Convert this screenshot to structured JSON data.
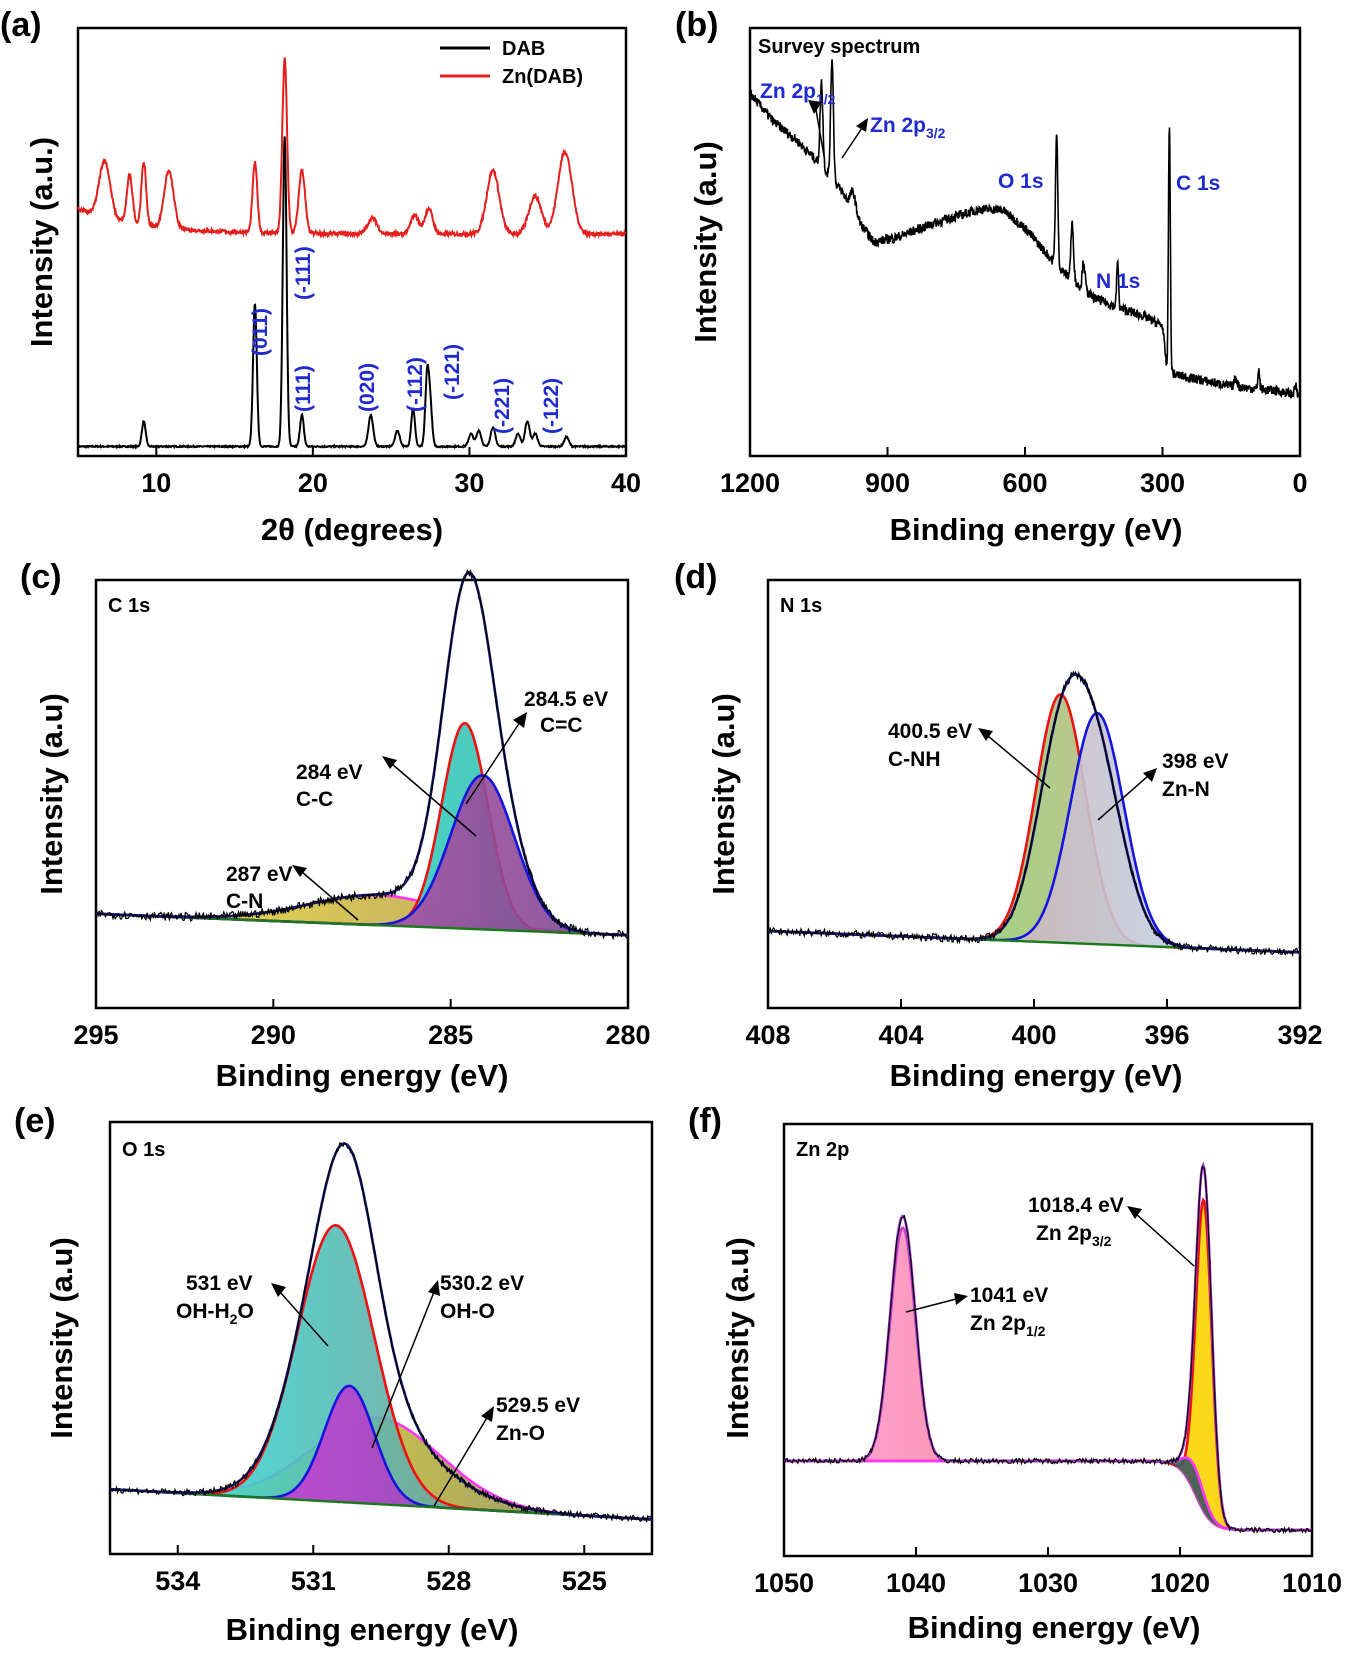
{
  "chart_data": [
    {
      "id": "a",
      "type": "line",
      "panel_label": "(a)",
      "xlabel": "2θ (degrees)",
      "ylabel": "Intensity (a.u.)",
      "xlim": [
        5,
        40
      ],
      "xticks": [
        "10",
        "20",
        "30",
        "40"
      ],
      "legend": {
        "placement": "top-right",
        "entries": [
          {
            "name": "DAB",
            "color": "#000000"
          },
          {
            "name": "Zn(DAB)",
            "color": "#e51e1e"
          }
        ]
      },
      "series": [
        {
          "name": "DAB",
          "color": "#000000",
          "baseline": 0.03,
          "peaks": [
            [
              9.2,
              0.08,
              0.12
            ],
            [
              16.3,
              0.45,
              0.12
            ],
            [
              18.2,
              0.98,
              0.12
            ],
            [
              19.3,
              0.1,
              0.12
            ],
            [
              23.7,
              0.1,
              0.15
            ],
            [
              25.4,
              0.05,
              0.15
            ],
            [
              26.4,
              0.12,
              0.12
            ],
            [
              27.3,
              0.22,
              0.12
            ],
            [
              27.5,
              0.12,
              0.12
            ],
            [
              30.1,
              0.04,
              0.15
            ],
            [
              30.6,
              0.05,
              0.15
            ],
            [
              31.5,
              0.06,
              0.15
            ],
            [
              33.1,
              0.04,
              0.15
            ],
            [
              33.7,
              0.08,
              0.15
            ],
            [
              34.2,
              0.04,
              0.15
            ],
            [
              36.2,
              0.03,
              0.15
            ]
          ]
        },
        {
          "name": "Zn(DAB)",
          "color": "#e51e1e",
          "baseline": 0.25,
          "peaks": [
            [
              6.7,
              0.18,
              0.35
            ],
            [
              8.3,
              0.15,
              0.18
            ],
            [
              9.2,
              0.2,
              0.15
            ],
            [
              10.8,
              0.18,
              0.3
            ],
            [
              16.3,
              0.22,
              0.15
            ],
            [
              18.2,
              0.55,
              0.15
            ],
            [
              19.3,
              0.2,
              0.2
            ],
            [
              23.8,
              0.05,
              0.3
            ],
            [
              26.5,
              0.06,
              0.25
            ],
            [
              27.4,
              0.08,
              0.25
            ],
            [
              31.5,
              0.2,
              0.4
            ],
            [
              34.2,
              0.12,
              0.4
            ],
            [
              36.1,
              0.26,
              0.45
            ]
          ]
        }
      ],
      "annotations": [
        {
          "text": "(011)",
          "x": 16.3
        },
        {
          "text": "(-111)",
          "x": 18.2
        },
        {
          "text": "(111)",
          "x": 19.3
        },
        {
          "text": "(020)",
          "x": 23.7
        },
        {
          "text": "(-112)",
          "x": 26.4
        },
        {
          "text": "(-121)",
          "x": 27.4
        },
        {
          "text": "(-221)",
          "x": 31.5
        },
        {
          "text": "(-122)",
          "x": 33.7
        }
      ]
    },
    {
      "id": "b",
      "type": "line",
      "panel_label": "(b)",
      "inset_title": "Survey spectrum",
      "xlabel": "Binding energy (eV)",
      "ylabel": "Intensity (a.u)",
      "xlim": [
        1200,
        0
      ],
      "xticks": [
        "1200",
        "900",
        "600",
        "300",
        "0"
      ],
      "series": [
        {
          "name": "survey",
          "color": "#000000",
          "background": [
            [
              1200,
              0.78
            ],
            [
              1150,
              0.72
            ],
            [
              1100,
              0.68
            ],
            [
              1050,
              0.63
            ],
            [
              1000,
              0.57
            ],
            [
              960,
              0.5
            ],
            [
              930,
              0.46
            ],
            [
              880,
              0.47
            ],
            [
              800,
              0.5
            ],
            [
              700,
              0.53
            ],
            [
              650,
              0.53
            ],
            [
              600,
              0.49
            ],
            [
              540,
              0.42
            ],
            [
              500,
              0.38
            ],
            [
              450,
              0.34
            ],
            [
              400,
              0.32
            ],
            [
              340,
              0.3
            ],
            [
              300,
              0.28
            ],
            [
              290,
              0.18
            ],
            [
              250,
              0.17
            ],
            [
              150,
              0.15
            ],
            [
              50,
              0.14
            ],
            [
              0,
              0.13
            ]
          ],
          "peaks": [
            [
              1044,
              0.18,
              3
            ],
            [
              1021,
              0.26,
              3
            ],
            [
              975,
              0.04,
              6
            ],
            [
              531,
              0.28,
              2.5
            ],
            [
              497,
              0.12,
              3
            ],
            [
              472,
              0.06,
              3
            ],
            [
              398,
              0.1,
              2
            ],
            [
              285,
              0.54,
              2
            ],
            [
              140,
              0.02,
              3
            ],
            [
              90,
              0.04,
              2
            ],
            [
              10,
              0.02,
              2
            ]
          ]
        }
      ],
      "annotations": [
        {
          "text": "Zn 2p",
          "sub": "1/2",
          "x": 1044
        },
        {
          "text": "Zn 2p",
          "sub": "3/2",
          "x": 1021
        },
        {
          "text": "O 1s",
          "x": 531
        },
        {
          "text": "N 1s",
          "x": 398
        },
        {
          "text": "C 1s",
          "x": 285
        }
      ]
    },
    {
      "id": "c",
      "type": "area",
      "panel_label": "(c)",
      "inset_title": "C 1s",
      "xlabel": "Binding energy (eV)",
      "ylabel": "Intensity (a.u)",
      "xlim": [
        295,
        280
      ],
      "xticks": [
        "295",
        "290",
        "285",
        "280"
      ],
      "background": {
        "x": [
          295,
          280
        ],
        "y": [
          0.22,
          0.17
        ],
        "color": "#1a7a1a"
      },
      "components": [
        {
          "center": 287,
          "amp": 0.07,
          "sigma": 2.0,
          "line": "#ff33ff",
          "fill": [
            "#f0e030",
            "#a89060"
          ]
        },
        {
          "center": 284.6,
          "amp": 0.48,
          "sigma": 0.65,
          "line": "#ee1111",
          "fill": [
            "#22e8e8",
            "#40b8a0"
          ]
        },
        {
          "center": 284.1,
          "amp": 0.36,
          "sigma": 0.9,
          "line": "#1515dd",
          "fill": [
            "#ff55cc",
            "#704888"
          ]
        }
      ],
      "envelope_color": "#14147a",
      "annotations": [
        {
          "lines": [
            "284.5 eV",
            "C=C"
          ]
        },
        {
          "lines": [
            "284 eV",
            "C-C"
          ]
        },
        {
          "lines": [
            "287 eV",
            "C-N"
          ]
        }
      ]
    },
    {
      "id": "d",
      "type": "area",
      "panel_label": "(d)",
      "inset_title": "N 1s",
      "xlabel": "Binding energy (eV)",
      "ylabel": "Intensity (a.u)",
      "xlim": [
        408,
        392
      ],
      "xticks": [
        "408",
        "404",
        "400",
        "396",
        "392"
      ],
      "background": {
        "x": [
          408,
          392
        ],
        "y": [
          0.18,
          0.13
        ],
        "color": "#1a7a1a"
      },
      "components": [
        {
          "center": 399.2,
          "amp": 0.58,
          "sigma": 0.75,
          "line": "#ee1111",
          "fill": [
            "#55ee55",
            "#f4a0a0"
          ]
        },
        {
          "center": 398.1,
          "amp": 0.54,
          "sigma": 0.8,
          "line": "#1515dd",
          "fill": [
            "#e09090",
            "#b8e4f8"
          ]
        }
      ],
      "envelope_color": "#14147a",
      "annotations": [
        {
          "lines": [
            "400.5 eV",
            "C-NH"
          ]
        },
        {
          "lines": [
            "398 eV",
            "Zn-N"
          ]
        }
      ]
    },
    {
      "id": "e",
      "type": "area",
      "panel_label": "(e)",
      "inset_title": "O 1s",
      "xlabel": "Binding energy (eV)",
      "ylabel": "Intensity (a.u)",
      "xlim": [
        535.5,
        523.5
      ],
      "xticks": [
        "534",
        "531",
        "528",
        "525"
      ],
      "background": {
        "x": [
          535.5,
          523.5
        ],
        "y": [
          0.15,
          0.08
        ],
        "color": "#1a7a1a"
      },
      "components": [
        {
          "center": 529.6,
          "amp": 0.2,
          "sigma": 1.4,
          "line": "#ff33ff",
          "fill": [
            "#ffee00",
            "#808070"
          ]
        },
        {
          "center": 530.5,
          "amp": 0.64,
          "sigma": 0.85,
          "line": "#ee1111",
          "fill": [
            "#22e8e8",
            "#a08070"
          ]
        },
        {
          "center": 530.2,
          "amp": 0.27,
          "sigma": 0.55,
          "line": "#1515dd",
          "fill": [
            "#ee33ee",
            "#7050a0"
          ]
        }
      ],
      "envelope_color": "#14147a",
      "annotations": [
        {
          "lines": [
            "531 eV",
            "OH-H",
            "2",
            "O"
          ]
        },
        {
          "lines": [
            "530.2 eV",
            "OH-O"
          ]
        },
        {
          "lines": [
            "529.5 eV",
            "Zn-O"
          ]
        }
      ]
    },
    {
      "id": "f",
      "type": "area",
      "panel_label": "(f)",
      "inset_title": "Zn 2p",
      "xlabel": "Binding energy (eV)",
      "ylabel": "Intensity (a.u)",
      "xlim": [
        1050,
        1010
      ],
      "xticks": [
        "1050",
        "1040",
        "1030",
        "1020",
        "1010"
      ],
      "components": [
        {
          "center": 1041,
          "amp": 0.54,
          "sigma": 0.95,
          "line": "#cc44cc",
          "fill": [
            "#ff99dd",
            "#ee7744"
          ]
        },
        {
          "center": 1018.2,
          "amp": 0.72,
          "sigma": 0.6,
          "line": "#ee1111",
          "fill": [
            "#eeee00",
            "#ffcc00"
          ]
        },
        {
          "center": 1018.9,
          "amp": 0.06,
          "sigma": 0.8,
          "line": "#ff33ff",
          "fill": [
            "#66cc88",
            "#333355"
          ]
        }
      ],
      "envelope_color": "#a030d0",
      "annotations": [
        {
          "lines": [
            "1018.4 eV",
            "Zn 2p",
            "3/2"
          ]
        },
        {
          "lines": [
            "1041 eV",
            "Zn 2p",
            "1/2"
          ]
        }
      ]
    }
  ]
}
